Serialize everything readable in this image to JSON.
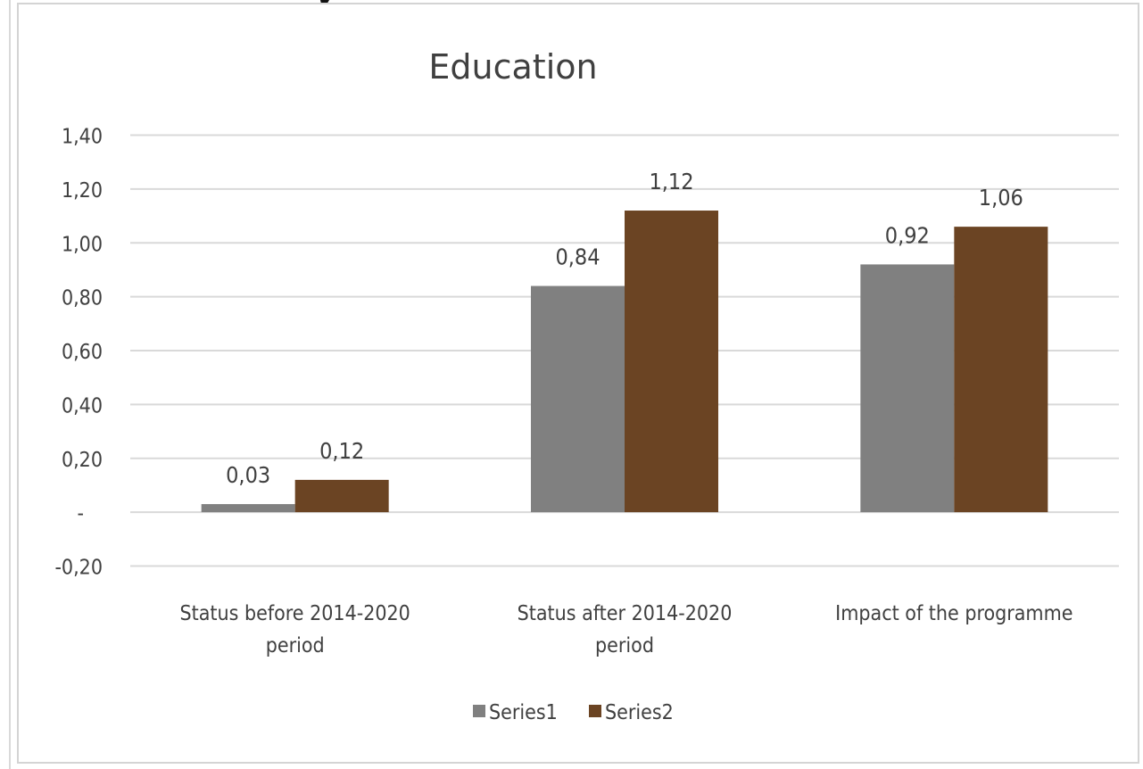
{
  "chart_data": {
    "type": "bar",
    "title": "Education",
    "categories": [
      [
        "Status before 2014-2020",
        "period"
      ],
      [
        "Status after 2014-2020",
        "period"
      ],
      [
        "Impact of the programme"
      ]
    ],
    "series": [
      {
        "name": "Series1",
        "color": "#808080",
        "values": [
          0.03,
          0.84,
          0.92
        ],
        "labels": [
          "0,03",
          "0,84",
          "0,92"
        ]
      },
      {
        "name": "Series2",
        "color": "#6b4423",
        "values": [
          0.12,
          1.12,
          1.06
        ],
        "labels": [
          "0,12",
          "1,12",
          "1,06"
        ]
      }
    ],
    "y_ticks": [
      {
        "value": 1.4,
        "label": "1,40"
      },
      {
        "value": 1.2,
        "label": "1,20"
      },
      {
        "value": 1.0,
        "label": "1,00"
      },
      {
        "value": 0.8,
        "label": "0,80"
      },
      {
        "value": 0.6,
        "label": "0,60"
      },
      {
        "value": 0.4,
        "label": "0,40"
      },
      {
        "value": 0.2,
        "label": "0,20"
      },
      {
        "value": 0.0,
        "label": "-"
      },
      {
        "value": -0.2,
        "label": "-0,20"
      }
    ],
    "ylim": [
      -0.2,
      1.4
    ],
    "grid": true,
    "legend_position": "bottom",
    "gridline_color": "#d9d9d9"
  }
}
